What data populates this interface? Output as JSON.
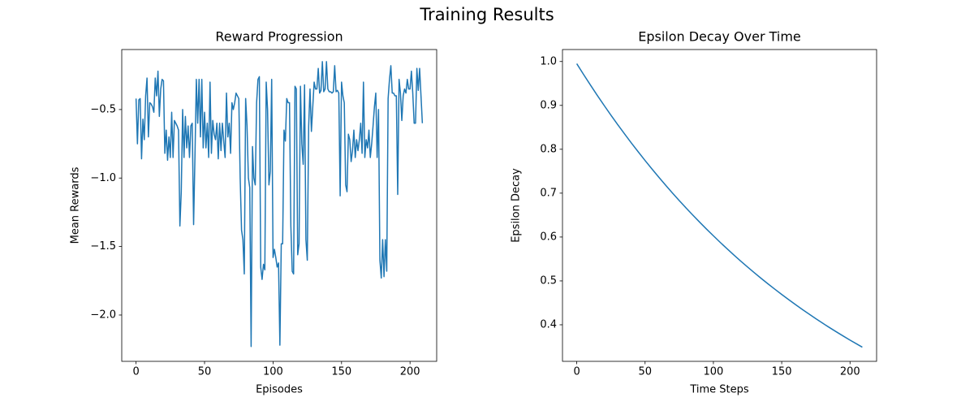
{
  "title": "Training Results",
  "chart_data": [
    {
      "type": "line",
      "title": "Reward Progression",
      "xlabel": "Episodes",
      "ylabel": "Mean Rewards",
      "color": "#1f77b4",
      "x": [
        0,
        1,
        2,
        3,
        4,
        5,
        6,
        7,
        8,
        9,
        10,
        11,
        12,
        13,
        14,
        15,
        16,
        17,
        18,
        19,
        20,
        21,
        22,
        23,
        24,
        25,
        26,
        27,
        28,
        29,
        30,
        31,
        32,
        33,
        34,
        35,
        36,
        37,
        38,
        39,
        40,
        41,
        42,
        43,
        44,
        45,
        46,
        47,
        48,
        49,
        50,
        51,
        52,
        53,
        54,
        55,
        56,
        57,
        58,
        59,
        60,
        61,
        62,
        63,
        64,
        65,
        66,
        67,
        68,
        69,
        70,
        71,
        72,
        73,
        74,
        75,
        76,
        77,
        78,
        79,
        80,
        81,
        82,
        83,
        84,
        85,
        86,
        87,
        88,
        89,
        90,
        91,
        92,
        93,
        94,
        95,
        96,
        97,
        98,
        99,
        100,
        101,
        102,
        103,
        104,
        105,
        106,
        107,
        108,
        109,
        110,
        111,
        112,
        113,
        114,
        115,
        116,
        117,
        118,
        119,
        120,
        121,
        122,
        123,
        124,
        125,
        126,
        127,
        128,
        129,
        130,
        131,
        132,
        133,
        134,
        135,
        136,
        137,
        138,
        139,
        140,
        141,
        142,
        143,
        144,
        145,
        146,
        147,
        148,
        149,
        150,
        151,
        152,
        153,
        154,
        155,
        156,
        157,
        158,
        159,
        160,
        161,
        162,
        163,
        164,
        165,
        166,
        167,
        168,
        169,
        170,
        171,
        172,
        173,
        174,
        175,
        176,
        177,
        178,
        179,
        180,
        181,
        182,
        183,
        184,
        185,
        186,
        187,
        188,
        189,
        190,
        191,
        192,
        193,
        194,
        195,
        196,
        197,
        198,
        199,
        200,
        201,
        202,
        203,
        204,
        205,
        206,
        207,
        208,
        209
      ],
      "values": [
        -0.42,
        -0.75,
        -0.43,
        -0.42,
        -0.86,
        -0.57,
        -0.72,
        -0.4,
        -0.27,
        -0.7,
        -0.45,
        -0.46,
        -0.48,
        -0.52,
        -0.27,
        -0.4,
        -0.22,
        -0.55,
        -0.35,
        -0.28,
        -0.29,
        -0.82,
        -0.65,
        -0.87,
        -0.7,
        -0.85,
        -0.52,
        -0.85,
        -0.58,
        -0.6,
        -0.62,
        -0.65,
        -1.35,
        -1.1,
        -0.5,
        -0.85,
        -0.55,
        -0.78,
        -0.62,
        -0.85,
        -0.62,
        -0.6,
        -1.34,
        -0.84,
        -0.28,
        -0.6,
        -0.28,
        -0.7,
        -0.28,
        -0.78,
        -0.52,
        -0.78,
        -0.6,
        -0.85,
        -0.3,
        -0.82,
        -0.58,
        -0.68,
        -0.72,
        -0.6,
        -0.86,
        -0.6,
        -0.8,
        -0.6,
        -0.73,
        -0.85,
        -0.38,
        -0.7,
        -0.6,
        -0.82,
        -0.45,
        -0.5,
        -0.45,
        -0.38,
        -0.4,
        -0.42,
        -1.0,
        -1.38,
        -1.45,
        -1.7,
        -0.42,
        -0.62,
        -1.0,
        -1.07,
        -2.23,
        -0.77,
        -1.0,
        -1.05,
        -0.45,
        -0.28,
        -0.26,
        -1.65,
        -1.74,
        -1.63,
        -1.67,
        -0.3,
        -0.5,
        -1.05,
        -0.95,
        -0.28,
        -1.58,
        -1.52,
        -1.58,
        -1.65,
        -1.62,
        -2.22,
        -1.48,
        -1.48,
        -0.65,
        -0.73,
        -0.42,
        -0.45,
        -0.45,
        -1.35,
        -1.68,
        -1.7,
        -0.33,
        -0.35,
        -1.56,
        -1.48,
        -0.33,
        -0.75,
        -0.9,
        -0.32,
        -1.45,
        -1.6,
        -0.62,
        -0.35,
        -0.66,
        -0.48,
        -0.3,
        -0.35,
        -0.35,
        -0.2,
        -0.38,
        -0.36,
        -0.15,
        -0.37,
        -0.35,
        -0.15,
        -0.35,
        -0.37,
        -0.37,
        -0.38,
        -0.37,
        -0.18,
        -0.37,
        -0.36,
        -0.38,
        -1.13,
        -0.3,
        -0.4,
        -0.45,
        -1.05,
        -1.1,
        -0.68,
        -0.72,
        -0.88,
        -0.8,
        -0.65,
        -0.85,
        -0.72,
        -0.8,
        -0.72,
        -0.6,
        -0.82,
        -0.3,
        -0.85,
        -0.72,
        -0.78,
        -0.65,
        -0.85,
        -0.75,
        -0.62,
        -0.48,
        -0.38,
        -0.85,
        -0.5,
        -1.6,
        -1.73,
        -1.45,
        -1.72,
        -1.45,
        -1.68,
        -0.42,
        -0.28,
        -0.18,
        -0.38,
        -0.38,
        -0.4,
        -0.4,
        -1.12,
        -0.28,
        -0.38,
        -0.58,
        -0.4,
        -0.35,
        -0.38,
        -0.28,
        -0.35,
        -0.35,
        -0.22,
        -0.38,
        -0.6,
        -0.6,
        -0.2,
        -0.36,
        -0.2,
        -0.4,
        -0.6
      ],
      "xlim": [
        -10.45,
        219.45
      ],
      "ylim": [
        -2.338,
        -0.062
      ],
      "xticks": [
        0,
        50,
        100,
        150,
        200
      ],
      "yticks": [
        {
          "value": -2.0,
          "label": "−2.0"
        },
        {
          "value": -1.5,
          "label": "−1.5"
        },
        {
          "value": -1.0,
          "label": "−1.0"
        },
        {
          "value": -0.5,
          "label": "−0.5"
        }
      ]
    },
    {
      "type": "line",
      "title": "Epsilon Decay Over Time",
      "xlabel": "Time Steps",
      "ylabel": "Epsilon Decay",
      "color": "#1f77b4",
      "x": [
        0,
        5,
        10,
        15,
        20,
        25,
        30,
        35,
        40,
        45,
        50,
        55,
        60,
        65,
        70,
        75,
        80,
        85,
        90,
        95,
        100,
        105,
        110,
        115,
        120,
        125,
        130,
        135,
        140,
        145,
        150,
        155,
        160,
        165,
        170,
        175,
        180,
        185,
        190,
        195,
        200,
        205,
        209
      ],
      "values": [
        0.995,
        0.9704,
        0.9464,
        0.9229,
        0.9001,
        0.8778,
        0.8561,
        0.8349,
        0.8142,
        0.7941,
        0.7744,
        0.7553,
        0.7366,
        0.7183,
        0.7005,
        0.6832,
        0.6663,
        0.6498,
        0.6337,
        0.618,
        0.6028,
        0.5878,
        0.5733,
        0.5591,
        0.5452,
        0.5318,
        0.5186,
        0.5057,
        0.4932,
        0.481,
        0.4691,
        0.4575,
        0.4462,
        0.4351,
        0.4244,
        0.4139,
        0.4036,
        0.3936,
        0.3839,
        0.3744,
        0.3651,
        0.3561,
        0.349
      ],
      "xlim": [
        -10.45,
        219.45
      ],
      "ylim": [
        0.3167,
        1.0273
      ],
      "xticks": [
        0,
        50,
        100,
        150,
        200
      ],
      "yticks": [
        0.4,
        0.5,
        0.6,
        0.7,
        0.8,
        0.9,
        {
          "value": 1.0,
          "label": "1.0"
        }
      ]
    }
  ]
}
